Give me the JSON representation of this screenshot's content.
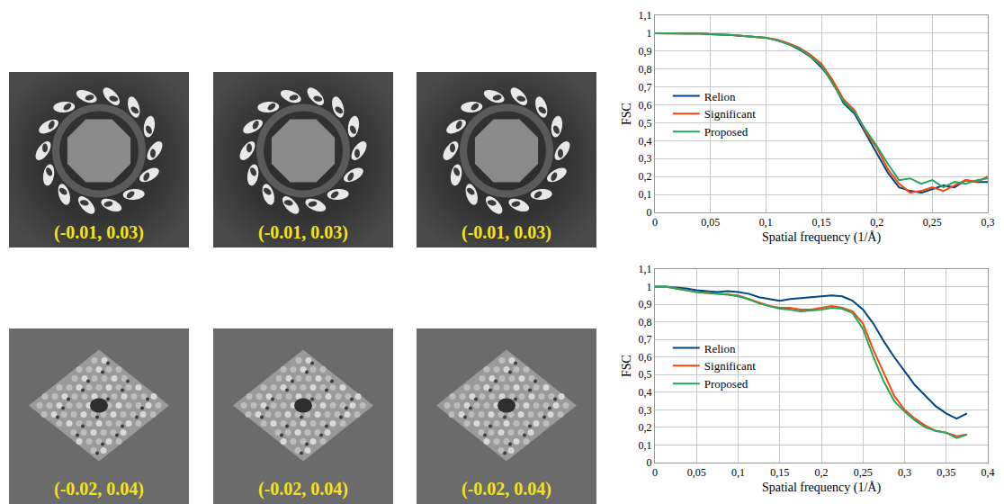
{
  "image_rows": [
    [
      "(-0.01, 0.03)",
      "(-0.01, 0.03)",
      "(-0.01, 0.03)"
    ],
    [
      "(-0.02, 0.04)",
      "(-0.02, 0.04)",
      "(-0.02, 0.04)"
    ]
  ],
  "chart_data": [
    {
      "type": "line",
      "x_label": "Spatial frequency (1/Å)",
      "y_label": "FSC",
      "x": [
        0,
        0.01,
        0.02,
        0.03,
        0.04,
        0.05,
        0.06,
        0.07,
        0.08,
        0.09,
        0.1,
        0.11,
        0.12,
        0.13,
        0.14,
        0.15,
        0.16,
        0.17,
        0.18,
        0.19,
        0.2,
        0.21,
        0.22,
        0.23,
        0.24,
        0.25,
        0.26,
        0.27,
        0.28,
        0.29,
        0.3
      ],
      "series": [
        {
          "name": "Relion",
          "color": "#004586",
          "values": [
            1,
            1,
            1,
            1,
            0.998,
            0.995,
            0.993,
            0.99,
            0.985,
            0.98,
            0.975,
            0.96,
            0.94,
            0.91,
            0.87,
            0.81,
            0.73,
            0.61,
            0.55,
            0.44,
            0.33,
            0.22,
            0.14,
            0.12,
            0.11,
            0.13,
            0.15,
            0.14,
            0.18,
            0.17,
            0.17
          ]
        },
        {
          "name": "Significant",
          "color": "#ff420e",
          "values": [
            1,
            1,
            1,
            1,
            0.998,
            0.995,
            0.993,
            0.99,
            0.985,
            0.98,
            0.975,
            0.965,
            0.945,
            0.92,
            0.88,
            0.83,
            0.74,
            0.63,
            0.57,
            0.45,
            0.36,
            0.24,
            0.16,
            0.11,
            0.12,
            0.14,
            0.12,
            0.15,
            0.18,
            0.17,
            0.2
          ]
        },
        {
          "name": "Proposed",
          "color": "#26a65b",
          "values": [
            1,
            1,
            1,
            1,
            0.998,
            0.995,
            0.993,
            0.99,
            0.985,
            0.98,
            0.975,
            0.96,
            0.94,
            0.915,
            0.87,
            0.82,
            0.72,
            0.62,
            0.56,
            0.46,
            0.37,
            0.27,
            0.18,
            0.19,
            0.16,
            0.18,
            0.14,
            0.17,
            0.16,
            0.18,
            0.19
          ]
        }
      ],
      "xlim": [
        0,
        0.3
      ],
      "xticks": [
        0,
        {
          "value": 0.05,
          "label": "0,05"
        },
        {
          "value": 0.1,
          "label": "0,1"
        },
        {
          "value": 0.15,
          "label": "0,15"
        },
        {
          "value": 0.2,
          "label": "0,2"
        },
        {
          "value": 0.25,
          "label": "0,25"
        },
        {
          "value": 0.3,
          "label": "0,3"
        }
      ],
      "ylim": [
        0,
        1.1
      ],
      "yticks": [
        0,
        {
          "value": 0.1,
          "label": "0,1"
        },
        {
          "value": 0.2,
          "label": "0,2"
        },
        {
          "value": 0.3,
          "label": "0,3"
        },
        {
          "value": 0.4,
          "label": "0,4"
        },
        {
          "value": 0.5,
          "label": "0,5"
        },
        {
          "value": 0.6,
          "label": "0,6"
        },
        {
          "value": 0.7,
          "label": "0,7"
        },
        {
          "value": 0.8,
          "label": "0,8"
        },
        {
          "value": 0.9,
          "label": "0,9"
        },
        1,
        {
          "value": 1.1,
          "label": "1,1"
        }
      ],
      "grid": true,
      "legend": "left"
    },
    {
      "type": "line",
      "x_label": "Spatial frequency (1/Å)",
      "y_label": "FSC",
      "x": [
        0,
        0.0125,
        0.025,
        0.0375,
        0.05,
        0.0625,
        0.075,
        0.0875,
        0.1,
        0.1125,
        0.125,
        0.1375,
        0.15,
        0.1625,
        0.175,
        0.1875,
        0.2,
        0.2125,
        0.225,
        0.2375,
        0.25,
        0.2625,
        0.275,
        0.2875,
        0.3,
        0.3125,
        0.325,
        0.3375,
        0.35,
        0.3625,
        0.375
      ],
      "series": [
        {
          "name": "Relion",
          "color": "#004586",
          "values": [
            1,
            1,
            0.995,
            0.99,
            0.98,
            0.975,
            0.97,
            0.975,
            0.97,
            0.96,
            0.94,
            0.93,
            0.92,
            0.93,
            0.935,
            0.94,
            0.945,
            0.95,
            0.945,
            0.92,
            0.87,
            0.79,
            0.69,
            0.6,
            0.52,
            0.44,
            0.38,
            0.32,
            0.28,
            0.25,
            0.28
          ]
        },
        {
          "name": "Significant",
          "color": "#ff420e",
          "values": [
            1,
            1,
            0.99,
            0.98,
            0.97,
            0.965,
            0.96,
            0.955,
            0.95,
            0.93,
            0.91,
            0.89,
            0.88,
            0.88,
            0.87,
            0.87,
            0.88,
            0.89,
            0.88,
            0.86,
            0.79,
            0.64,
            0.51,
            0.38,
            0.3,
            0.25,
            0.21,
            0.18,
            0.17,
            0.15,
            0.16
          ]
        },
        {
          "name": "Proposed",
          "color": "#26a65b",
          "values": [
            1,
            1,
            0.99,
            0.98,
            0.97,
            0.965,
            0.96,
            0.955,
            0.945,
            0.93,
            0.905,
            0.89,
            0.875,
            0.87,
            0.86,
            0.865,
            0.87,
            0.88,
            0.875,
            0.85,
            0.76,
            0.6,
            0.46,
            0.35,
            0.29,
            0.24,
            0.2,
            0.18,
            0.17,
            0.14,
            0.16
          ]
        }
      ],
      "xlim": [
        0,
        0.4
      ],
      "xticks": [
        0,
        {
          "value": 0.05,
          "label": "0,05"
        },
        {
          "value": 0.1,
          "label": "0,1"
        },
        {
          "value": 0.15,
          "label": "0,15"
        },
        {
          "value": 0.2,
          "label": "0,2"
        },
        {
          "value": 0.25,
          "label": "0,25"
        },
        {
          "value": 0.3,
          "label": "0,3"
        },
        {
          "value": 0.35,
          "label": "0,35"
        },
        {
          "value": 0.4,
          "label": "0,4"
        }
      ],
      "ylim": [
        0,
        1.1
      ],
      "yticks": [
        0,
        {
          "value": 0.1,
          "label": "0,1"
        },
        {
          "value": 0.2,
          "label": "0,2"
        },
        {
          "value": 0.3,
          "label": "0,3"
        },
        {
          "value": 0.4,
          "label": "0,4"
        },
        {
          "value": 0.5,
          "label": "0,5"
        },
        {
          "value": 0.6,
          "label": "0,6"
        },
        {
          "value": 0.7,
          "label": "0,7"
        },
        {
          "value": 0.8,
          "label": "0,8"
        },
        {
          "value": 0.9,
          "label": "0,9"
        },
        1,
        {
          "value": 1.1,
          "label": "1,1"
        }
      ],
      "grid": true,
      "legend": "left"
    }
  ]
}
